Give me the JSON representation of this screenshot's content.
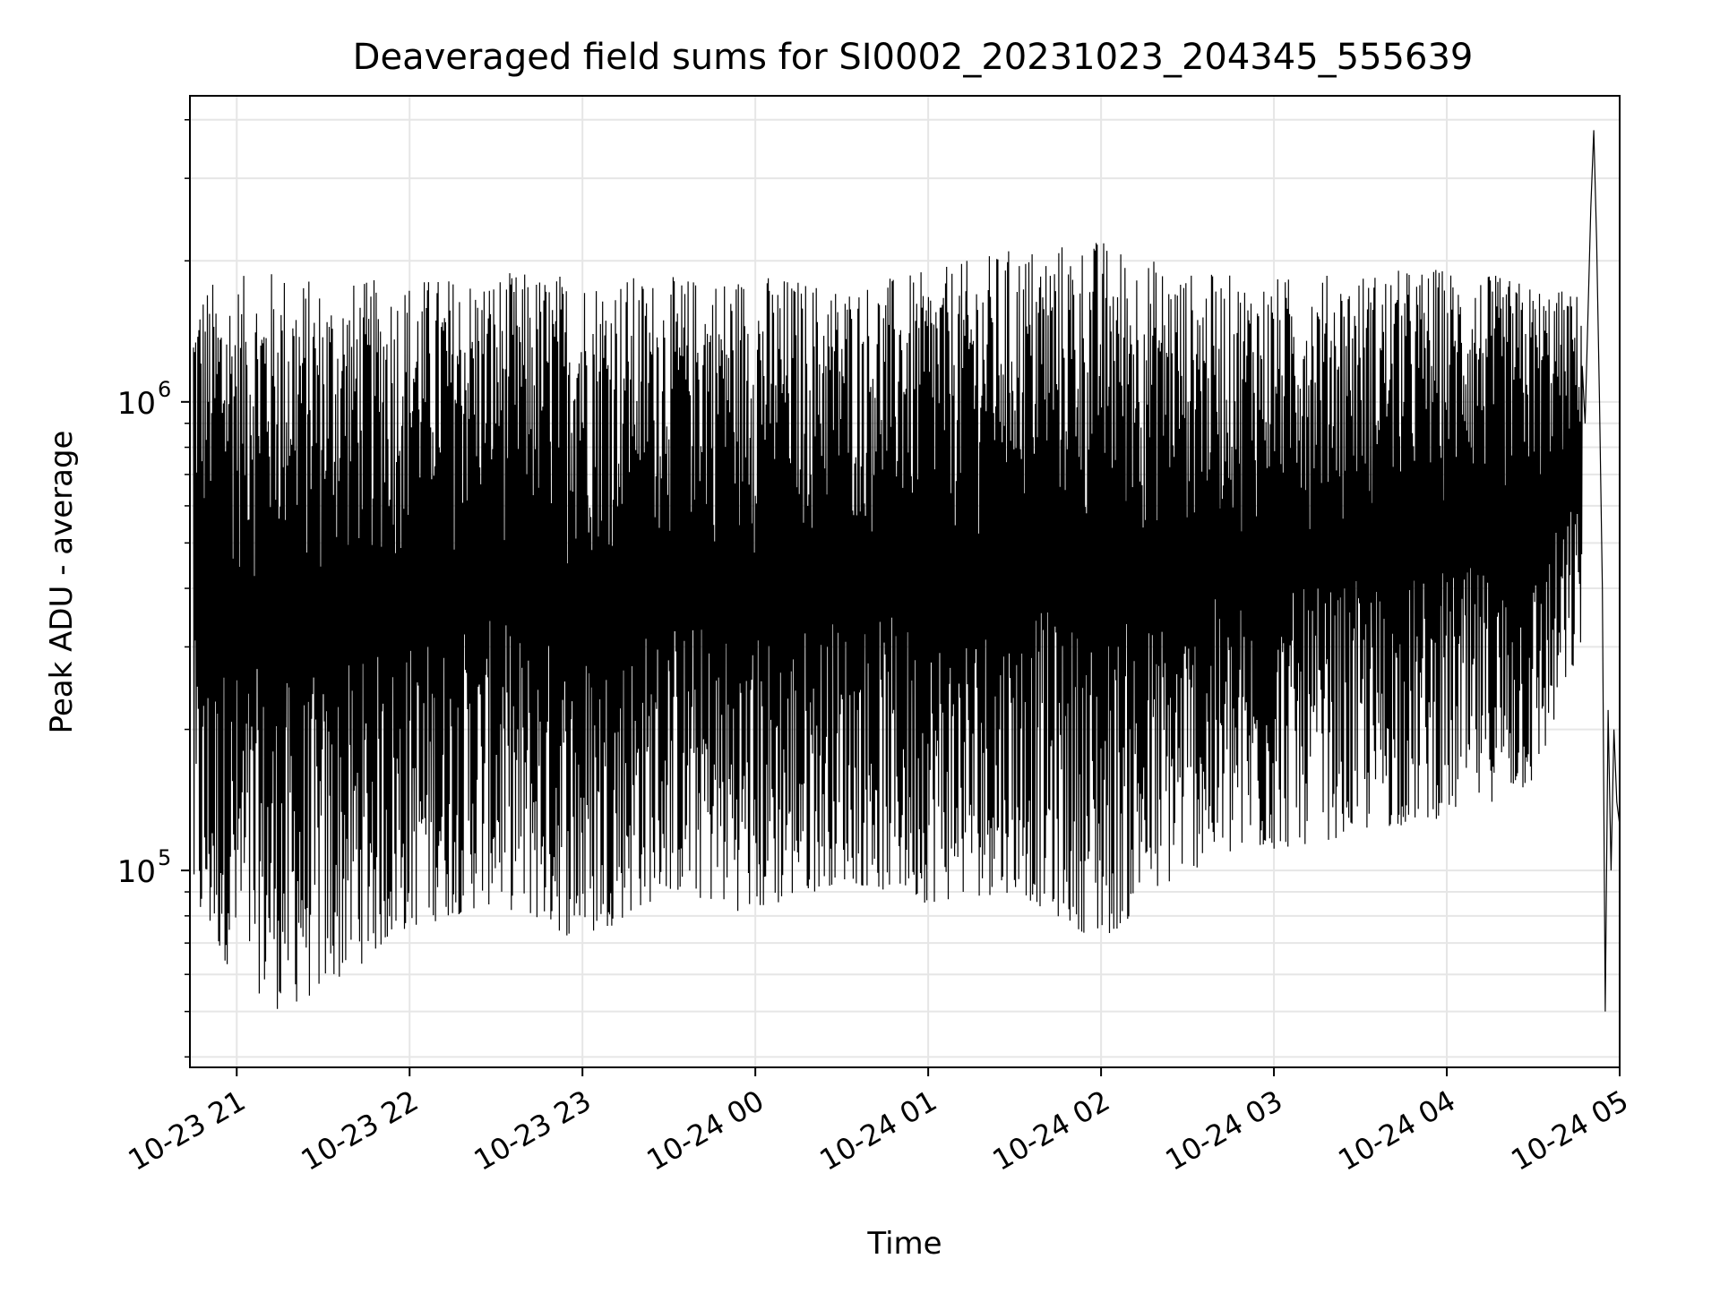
{
  "chart_data": {
    "type": "line",
    "title": "Deaveraged field sums for SI0002_20231023_204345_555639",
    "xlabel": "Time",
    "ylabel": "Peak ADU - average",
    "y_scale": "log",
    "grid": true,
    "legend": "none",
    "x_range": [
      "2023-10-23 20:43:45",
      "2023-10-24 05:00:00"
    ],
    "ylim": [
      38000,
      4500000
    ],
    "x_ticks": [
      {
        "time": "2023-10-23 21:00",
        "label": "10-23 21"
      },
      {
        "time": "2023-10-23 22:00",
        "label": "10-23 22"
      },
      {
        "time": "2023-10-23 23:00",
        "label": "10-23 23"
      },
      {
        "time": "2023-10-24 00:00",
        "label": "10-24 00"
      },
      {
        "time": "2023-10-24 01:00",
        "label": "10-24 01"
      },
      {
        "time": "2023-10-24 02:00",
        "label": "10-24 02"
      },
      {
        "time": "2023-10-24 03:00",
        "label": "10-24 03"
      },
      {
        "time": "2023-10-24 04:00",
        "label": "10-24 04"
      },
      {
        "time": "2023-10-24 05:00",
        "label": "10-24 05"
      }
    ],
    "y_ticks": [
      {
        "value": 100000,
        "label": "10",
        "exponent": "5"
      },
      {
        "value": 1000000,
        "label": "10",
        "exponent": "6"
      }
    ],
    "series": [
      {
        "color": "#000000",
        "band_envelope": [
          {
            "time": "2023-10-23 20:45",
            "low": 75000,
            "high": 1800000
          },
          {
            "time": "2023-10-23 21:00",
            "low": 60000,
            "high": 1850000
          },
          {
            "time": "2023-10-23 21:15",
            "low": 50000,
            "high": 1950000
          },
          {
            "time": "2023-10-23 21:30",
            "low": 55000,
            "high": 1800000
          },
          {
            "time": "2023-10-23 22:00",
            "low": 75000,
            "high": 1850000
          },
          {
            "time": "2023-10-23 22:30",
            "low": 85000,
            "high": 1900000
          },
          {
            "time": "2023-10-23 23:00",
            "low": 70000,
            "high": 1900000
          },
          {
            "time": "2023-10-23 23:30",
            "low": 90000,
            "high": 1850000
          },
          {
            "time": "2023-10-24 00:00",
            "low": 80000,
            "high": 1900000
          },
          {
            "time": "2023-10-24 00:30",
            "low": 95000,
            "high": 1800000
          },
          {
            "time": "2023-10-24 01:00",
            "low": 85000,
            "high": 1900000
          },
          {
            "time": "2023-10-24 01:30",
            "low": 90000,
            "high": 2150000
          },
          {
            "time": "2023-10-24 02:00",
            "low": 70000,
            "high": 2250000
          },
          {
            "time": "2023-10-24 02:30",
            "low": 100000,
            "high": 1900000
          },
          {
            "time": "2023-10-24 03:00",
            "low": 110000,
            "high": 1850000
          },
          {
            "time": "2023-10-24 03:30",
            "low": 120000,
            "high": 1900000
          },
          {
            "time": "2023-10-24 04:00",
            "low": 130000,
            "high": 1950000
          },
          {
            "time": "2023-10-24 04:30",
            "low": 150000,
            "high": 1800000
          },
          {
            "time": "2023-10-24 04:47",
            "low": 300000,
            "high": 1700000
          }
        ],
        "tail": [
          {
            "time": "2023-10-24 04:48",
            "value": 900000
          },
          {
            "time": "2023-10-24 04:50",
            "value": 2600000
          },
          {
            "time": "2023-10-24 04:51",
            "value": 3800000
          },
          {
            "time": "2023-10-24 04:52",
            "value": 2200000
          },
          {
            "time": "2023-10-24 04:53",
            "value": 1000000
          },
          {
            "time": "2023-10-24 04:54",
            "value": 400000
          },
          {
            "time": "2023-10-24 04:55",
            "value": 50000
          },
          {
            "time": "2023-10-24 04:56",
            "value": 220000
          },
          {
            "time": "2023-10-24 04:57",
            "value": 100000
          },
          {
            "time": "2023-10-24 04:58",
            "value": 200000
          },
          {
            "time": "2023-10-24 04:59",
            "value": 140000
          },
          {
            "time": "2023-10-24 05:00",
            "value": 125000
          }
        ]
      }
    ]
  }
}
